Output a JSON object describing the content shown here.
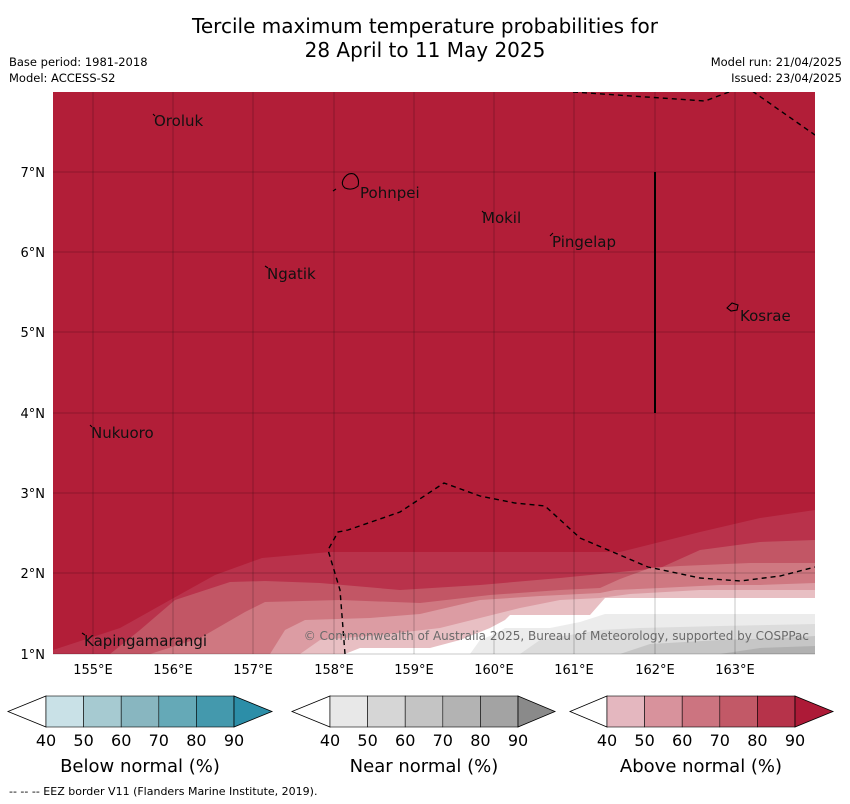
{
  "title": {
    "line1": "Tercile maximum temperature probabilities for",
    "line2": "28 April to 11 May 2025"
  },
  "meta": {
    "base_period": "Base period: 1981-2018",
    "model": "Model: ACCESS-S2",
    "model_run": "Model run: 21/04/2025",
    "issued": "Issued: 23/04/2025"
  },
  "map": {
    "lon_ticks": [
      "155°E",
      "156°E",
      "157°E",
      "158°E",
      "159°E",
      "160°E",
      "161°E",
      "162°E",
      "163°E"
    ],
    "lat_ticks": [
      "1°N",
      "2°N",
      "3°N",
      "4°N",
      "5°N",
      "6°N",
      "7°N"
    ],
    "places": [
      "Oroluk",
      "Pohnpei",
      "Mokil",
      "Pingelap",
      "Ngatik",
      "Kosrae",
      "Nukuoro",
      "Kapingamarangi"
    ],
    "copyright": "© Commonwealth of Australia 2025, Bureau of Meteorology, supported by COSPPac"
  },
  "colorbars": [
    {
      "title": "Below normal (%)",
      "ticks": [
        "40",
        "50",
        "60",
        "70",
        "80",
        "90"
      ],
      "colors": [
        "#ffffff",
        "#c9e1e7",
        "#a6cad1",
        "#88b6c0",
        "#65a9b7",
        "#4499ad",
        "#2c8ea8"
      ]
    },
    {
      "title": "Near normal (%)",
      "ticks": [
        "40",
        "50",
        "60",
        "70",
        "80",
        "90"
      ],
      "colors": [
        "#ffffff",
        "#e8e8e8",
        "#d6d6d6",
        "#c4c4c4",
        "#b3b3b3",
        "#a3a3a3",
        "#8a8a8a"
      ]
    },
    {
      "title": "Above normal (%)",
      "ticks": [
        "40",
        "50",
        "60",
        "70",
        "80",
        "90"
      ],
      "colors": [
        "#ffffff",
        "#e4b7bf",
        "#d8929c",
        "#cc7480",
        "#c25967",
        "#b6334a",
        "#ad1a37"
      ]
    }
  ],
  "footer": "--  --  -- EEZ border V11 (Flanders Marine Institute, 2019).",
  "colors": {
    "above_90": "#b21e38",
    "above_80": "#b9324b",
    "above_70": "#c25665",
    "above_60": "#cf7881",
    "above_50": "#dc9ca3",
    "above_40": "#e8bfc3",
    "near_50": "#dcdcdc",
    "near_60": "#c6c6c6",
    "near_70": "#b1b1b1"
  }
}
